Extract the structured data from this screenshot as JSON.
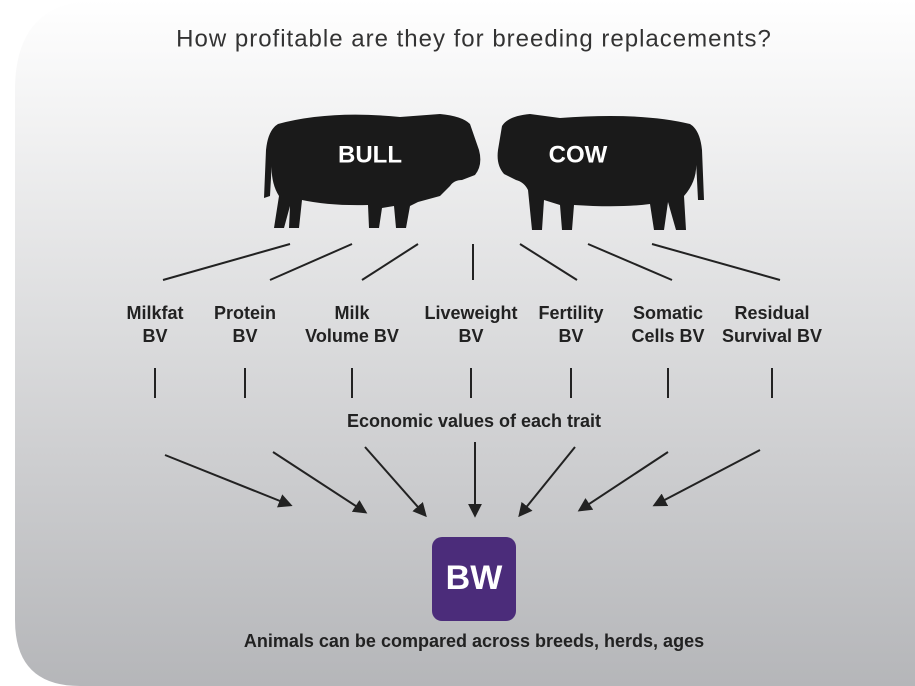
{
  "title": "How profitable are they for breeding replacements?",
  "parents": {
    "bull": "BULL",
    "cow": "COW"
  },
  "traits": [
    [
      "Milkfat",
      "BV"
    ],
    [
      "Protein",
      "BV"
    ],
    [
      "Milk",
      "Volume BV"
    ],
    [
      "Liveweight",
      "BV"
    ],
    [
      "Fertility",
      "BV"
    ],
    [
      "Somatic",
      "Cells BV"
    ],
    [
      "Residual",
      "Survival BV"
    ]
  ],
  "economic_values": "Economic values of each trait",
  "result": "BW",
  "footer": "Animals can be compared across breeds, herds, ages"
}
